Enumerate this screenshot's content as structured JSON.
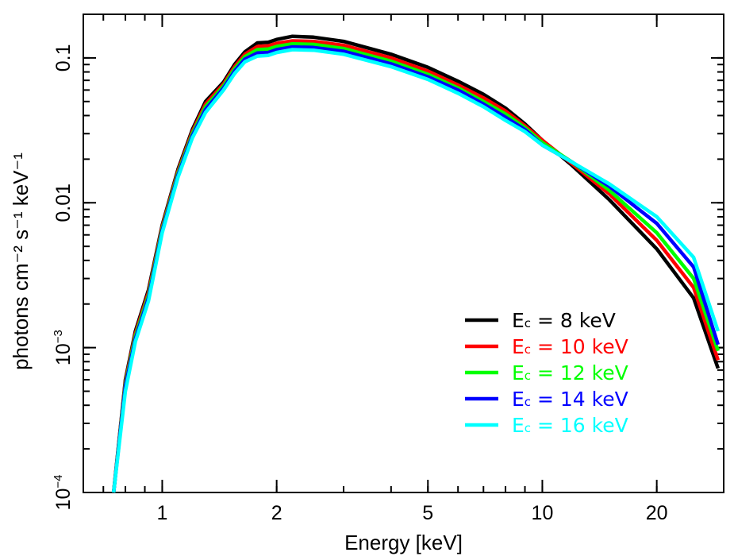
{
  "chart_data": {
    "type": "line",
    "xscale": "log",
    "yscale": "log",
    "xlabel": "Energy [keV]",
    "ylabel": "photons cm⁻² s⁻¹ keV⁻¹",
    "xlim": [
      0.62,
      30
    ],
    "ylim": [
      0.0001,
      0.2
    ],
    "x_major_ticks": [
      {
        "value": 1,
        "label": "1"
      },
      {
        "value": 2,
        "label": "2"
      },
      {
        "value": 5,
        "label": "5"
      },
      {
        "value": 10,
        "label": "10"
      },
      {
        "value": 20,
        "label": "20"
      }
    ],
    "y_major_ticks": [
      {
        "value": 0.0001,
        "base": "10",
        "exp": "−4"
      },
      {
        "value": 0.001,
        "base": "10",
        "exp": "−3"
      },
      {
        "value": 0.01,
        "label": "0.01"
      },
      {
        "value": 0.1,
        "label": "0.1"
      }
    ],
    "legend_position": "lower-right",
    "series": [
      {
        "name": "Ec = 8 keV",
        "label_main": "E",
        "label_sub": "c",
        "label_rest": " = 8 keV",
        "color": "#000000",
        "points": [
          [
            0.745,
            0.0001
          ],
          [
            0.8,
            0.0006
          ],
          [
            0.85,
            0.0013
          ],
          [
            0.92,
            0.0025
          ],
          [
            1.0,
            0.007
          ],
          [
            1.1,
            0.017
          ],
          [
            1.2,
            0.032
          ],
          [
            1.3,
            0.05
          ],
          [
            1.45,
            0.068
          ],
          [
            1.55,
            0.09
          ],
          [
            1.65,
            0.11
          ],
          [
            1.78,
            0.127
          ],
          [
            1.9,
            0.128
          ],
          [
            2.0,
            0.134
          ],
          [
            2.2,
            0.141
          ],
          [
            2.5,
            0.139
          ],
          [
            3.0,
            0.13
          ],
          [
            4.0,
            0.106
          ],
          [
            5.0,
            0.086
          ],
          [
            6.0,
            0.069
          ],
          [
            7.0,
            0.056
          ],
          [
            8.0,
            0.045
          ],
          [
            9.0,
            0.035
          ],
          [
            10.0,
            0.027
          ],
          [
            12.0,
            0.018
          ],
          [
            15.0,
            0.0105
          ],
          [
            20.0,
            0.0048
          ],
          [
            25.0,
            0.0022
          ],
          [
            29.0,
            0.00072
          ]
        ]
      },
      {
        "name": "Ec = 10 keV",
        "label_main": "E",
        "label_sub": "c",
        "label_rest": " = 10 keV",
        "color": "#ff0000",
        "points": [
          [
            0.745,
            0.0001
          ],
          [
            0.8,
            0.00058
          ],
          [
            0.85,
            0.00125
          ],
          [
            0.92,
            0.0024
          ],
          [
            1.0,
            0.0068
          ],
          [
            1.1,
            0.0165
          ],
          [
            1.2,
            0.031
          ],
          [
            1.3,
            0.048
          ],
          [
            1.45,
            0.066
          ],
          [
            1.55,
            0.087
          ],
          [
            1.65,
            0.106
          ],
          [
            1.78,
            0.12
          ],
          [
            1.9,
            0.121
          ],
          [
            2.0,
            0.126
          ],
          [
            2.2,
            0.131
          ],
          [
            2.5,
            0.13
          ],
          [
            3.0,
            0.122
          ],
          [
            4.0,
            0.1
          ],
          [
            5.0,
            0.081
          ],
          [
            6.0,
            0.065
          ],
          [
            7.0,
            0.053
          ],
          [
            8.0,
            0.043
          ],
          [
            9.0,
            0.034
          ],
          [
            10.0,
            0.027
          ],
          [
            12.0,
            0.0185
          ],
          [
            15.0,
            0.0115
          ],
          [
            20.0,
            0.0055
          ],
          [
            25.0,
            0.0026
          ],
          [
            29.0,
            0.00082
          ]
        ]
      },
      {
        "name": "Ec = 12 keV",
        "label_main": "E",
        "label_sub": "c",
        "label_rest": " = 12 keV",
        "color": "#00ff00",
        "points": [
          [
            0.745,
            0.0001
          ],
          [
            0.8,
            0.00056
          ],
          [
            0.85,
            0.0012
          ],
          [
            0.92,
            0.0023
          ],
          [
            1.0,
            0.0066
          ],
          [
            1.1,
            0.016
          ],
          [
            1.2,
            0.03
          ],
          [
            1.3,
            0.046
          ],
          [
            1.45,
            0.064
          ],
          [
            1.55,
            0.084
          ],
          [
            1.65,
            0.102
          ],
          [
            1.78,
            0.114
          ],
          [
            1.9,
            0.115
          ],
          [
            2.0,
            0.12
          ],
          [
            2.2,
            0.125
          ],
          [
            2.5,
            0.124
          ],
          [
            3.0,
            0.116
          ],
          [
            4.0,
            0.095
          ],
          [
            5.0,
            0.077
          ],
          [
            6.0,
            0.062
          ],
          [
            7.0,
            0.05
          ],
          [
            8.0,
            0.041
          ],
          [
            9.0,
            0.033
          ],
          [
            10.0,
            0.026
          ],
          [
            12.0,
            0.019
          ],
          [
            15.0,
            0.0122
          ],
          [
            20.0,
            0.0062
          ],
          [
            25.0,
            0.003
          ],
          [
            29.0,
            0.00095
          ]
        ]
      },
      {
        "name": "Ec = 14 keV",
        "label_main": "E",
        "label_sub": "c",
        "label_rest": " = 14 keV",
        "color": "#0000ff",
        "points": [
          [
            0.745,
            0.0001
          ],
          [
            0.8,
            0.00054
          ],
          [
            0.85,
            0.00115
          ],
          [
            0.92,
            0.0022
          ],
          [
            1.0,
            0.0064
          ],
          [
            1.1,
            0.0155
          ],
          [
            1.2,
            0.029
          ],
          [
            1.3,
            0.044
          ],
          [
            1.45,
            0.062
          ],
          [
            1.55,
            0.081
          ],
          [
            1.65,
            0.098
          ],
          [
            1.78,
            0.108
          ],
          [
            1.9,
            0.109
          ],
          [
            2.0,
            0.114
          ],
          [
            2.2,
            0.119
          ],
          [
            2.5,
            0.118
          ],
          [
            3.0,
            0.111
          ],
          [
            4.0,
            0.091
          ],
          [
            5.0,
            0.074
          ],
          [
            6.0,
            0.06
          ],
          [
            7.0,
            0.048
          ],
          [
            8.0,
            0.039
          ],
          [
            9.0,
            0.032
          ],
          [
            10.0,
            0.025
          ],
          [
            12.0,
            0.019
          ],
          [
            15.0,
            0.013
          ],
          [
            20.0,
            0.0072
          ],
          [
            25.0,
            0.0036
          ],
          [
            29.0,
            0.00105
          ]
        ]
      },
      {
        "name": "Ec = 16 keV",
        "label_main": "E",
        "label_sub": "c",
        "label_rest": " = 16 keV",
        "color": "#00ffff",
        "points": [
          [
            0.745,
            0.0001
          ],
          [
            0.8,
            0.0005
          ],
          [
            0.85,
            0.0011
          ],
          [
            0.92,
            0.0021
          ],
          [
            1.0,
            0.0062
          ],
          [
            1.1,
            0.015
          ],
          [
            1.2,
            0.028
          ],
          [
            1.3,
            0.042
          ],
          [
            1.45,
            0.06
          ],
          [
            1.55,
            0.078
          ],
          [
            1.65,
            0.094
          ],
          [
            1.78,
            0.103
          ],
          [
            1.9,
            0.104
          ],
          [
            2.0,
            0.109
          ],
          [
            2.2,
            0.114
          ],
          [
            2.5,
            0.113
          ],
          [
            3.0,
            0.106
          ],
          [
            4.0,
            0.087
          ],
          [
            5.0,
            0.071
          ],
          [
            6.0,
            0.057
          ],
          [
            7.0,
            0.046
          ],
          [
            8.0,
            0.037
          ],
          [
            9.0,
            0.031
          ],
          [
            10.0,
            0.025
          ],
          [
            12.0,
            0.019
          ],
          [
            15.0,
            0.0135
          ],
          [
            20.0,
            0.008
          ],
          [
            25.0,
            0.0042
          ],
          [
            29.0,
            0.0013
          ]
        ]
      }
    ]
  }
}
